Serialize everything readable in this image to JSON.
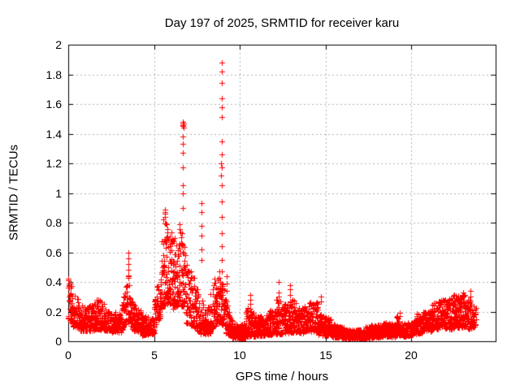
{
  "chart_data": {
    "type": "scatter",
    "title": "Day 197 of 2025, SRMTID for receiver karu",
    "xlabel": "GPS time / hours",
    "ylabel": "SRMTID / TECUs",
    "xlim": [
      0,
      24.9
    ],
    "ylim": [
      0,
      2
    ],
    "xticks": [
      0,
      5,
      10,
      15,
      20
    ],
    "yticks": [
      0,
      0.2,
      0.4,
      0.6,
      0.8,
      1,
      1.2,
      1.4,
      1.6,
      1.8,
      2
    ],
    "grid": true,
    "legend": "none",
    "marker": "plus",
    "marker_size_px": 7,
    "marker_color": "#ff0000",
    "grid_color": "#b4b4b4",
    "axis_color": "#000000",
    "background_color": "#ffffff",
    "seed": 197,
    "sample_step_hours": 0.02,
    "band_envelope": {
      "columns": [
        "t_start_h",
        "t_end_h",
        "lo_start",
        "hi_start",
        "lo_end",
        "hi_end",
        "points_per_step"
      ],
      "segments": [
        [
          0.0,
          0.25,
          0.14,
          0.43,
          0.12,
          0.36,
          3.2
        ],
        [
          0.25,
          0.7,
          0.1,
          0.33,
          0.09,
          0.27,
          2.8
        ],
        [
          0.7,
          1.2,
          0.07,
          0.25,
          0.07,
          0.22,
          2.8
        ],
        [
          1.2,
          1.8,
          0.07,
          0.24,
          0.08,
          0.3,
          2.8
        ],
        [
          1.8,
          2.4,
          0.08,
          0.28,
          0.07,
          0.22,
          2.8
        ],
        [
          2.4,
          3.1,
          0.06,
          0.2,
          0.06,
          0.19,
          2.8
        ],
        [
          3.1,
          3.42,
          0.07,
          0.24,
          0.12,
          0.4,
          2.8
        ],
        [
          3.42,
          3.6,
          0.14,
          0.52,
          0.12,
          0.35,
          3.0
        ],
        [
          3.6,
          4.3,
          0.08,
          0.28,
          0.06,
          0.2,
          2.8
        ],
        [
          4.3,
          5.0,
          0.04,
          0.18,
          0.05,
          0.15,
          2.8
        ],
        [
          5.0,
          5.45,
          0.08,
          0.3,
          0.18,
          0.5,
          2.8
        ],
        [
          5.45,
          5.75,
          0.22,
          0.89,
          0.25,
          0.8,
          3.4
        ],
        [
          5.75,
          6.1,
          0.25,
          0.78,
          0.25,
          0.72,
          3.2
        ],
        [
          6.1,
          6.5,
          0.22,
          0.74,
          0.25,
          0.68,
          3.0
        ],
        [
          6.5,
          6.85,
          0.25,
          0.8,
          0.2,
          0.6,
          2.8
        ],
        [
          6.85,
          7.35,
          0.12,
          0.55,
          0.1,
          0.45,
          2.6
        ],
        [
          7.35,
          7.7,
          0.08,
          0.42,
          0.06,
          0.3,
          2.6
        ],
        [
          7.7,
          8.3,
          0.05,
          0.28,
          0.05,
          0.25,
          2.9
        ],
        [
          8.3,
          8.8,
          0.08,
          0.38,
          0.12,
          0.48,
          2.8
        ],
        [
          8.8,
          9.15,
          0.12,
          0.45,
          0.1,
          0.4,
          3.0
        ],
        [
          9.15,
          9.55,
          0.06,
          0.3,
          0.03,
          0.15,
          2.8
        ],
        [
          9.55,
          10.35,
          0.02,
          0.12,
          0.02,
          0.12,
          3.2
        ],
        [
          10.35,
          10.8,
          0.03,
          0.24,
          0.04,
          0.2,
          2.8
        ],
        [
          10.8,
          11.6,
          0.03,
          0.16,
          0.04,
          0.18,
          3.0
        ],
        [
          11.6,
          12.1,
          0.04,
          0.2,
          0.05,
          0.24,
          2.8
        ],
        [
          12.1,
          12.45,
          0.05,
          0.3,
          0.05,
          0.26,
          2.8
        ],
        [
          12.45,
          12.95,
          0.05,
          0.24,
          0.06,
          0.28,
          2.8
        ],
        [
          12.95,
          13.25,
          0.06,
          0.33,
          0.06,
          0.28,
          2.8
        ],
        [
          13.25,
          13.9,
          0.05,
          0.23,
          0.06,
          0.24,
          2.8
        ],
        [
          13.9,
          14.55,
          0.07,
          0.29,
          0.06,
          0.26,
          2.8
        ],
        [
          14.55,
          15.3,
          0.04,
          0.19,
          0.04,
          0.15,
          2.8
        ],
        [
          15.3,
          16.2,
          0.03,
          0.12,
          0.02,
          0.09,
          3.0
        ],
        [
          16.2,
          17.3,
          0.02,
          0.08,
          0.02,
          0.08,
          3.4
        ],
        [
          17.3,
          18.3,
          0.02,
          0.1,
          0.03,
          0.12,
          3.4
        ],
        [
          18.3,
          19.1,
          0.03,
          0.13,
          0.03,
          0.12,
          3.0
        ],
        [
          19.1,
          19.5,
          0.04,
          0.19,
          0.04,
          0.14,
          2.8
        ],
        [
          19.5,
          20.3,
          0.03,
          0.12,
          0.05,
          0.14,
          3.0
        ],
        [
          20.3,
          21.2,
          0.05,
          0.19,
          0.07,
          0.22,
          2.8
        ],
        [
          21.2,
          22.2,
          0.08,
          0.26,
          0.09,
          0.3,
          2.9
        ],
        [
          22.2,
          23.25,
          0.08,
          0.31,
          0.1,
          0.32,
          3.2
        ],
        [
          23.25,
          23.75,
          0.08,
          0.3,
          0.1,
          0.24,
          2.4
        ]
      ]
    },
    "spike_columns": [
      {
        "x": 3.5,
        "values": [
          0.6,
          0.56,
          0.52,
          0.48,
          0.44
        ]
      },
      {
        "x": 5.62,
        "values": [
          0.89,
          0.87,
          0.86,
          0.84
        ]
      },
      {
        "x": 6.68,
        "values": [
          1.48,
          1.47,
          1.46,
          1.45,
          1.38,
          1.33,
          1.27,
          1.17,
          1.05,
          1.0,
          0.9
        ]
      },
      {
        "x": 6.74,
        "values": [
          1.47,
          1.44
        ]
      },
      {
        "x": 7.75,
        "values": [
          0.93,
          0.87,
          0.78,
          0.71,
          0.62,
          0.55
        ]
      },
      {
        "x": 8.88,
        "values": [
          1.2,
          1.12
        ]
      },
      {
        "x": 8.95,
        "values": [
          1.88,
          1.82,
          1.74,
          1.64,
          1.58,
          1.51,
          1.35,
          1.26,
          1.17,
          1.05,
          0.94,
          0.84,
          0.73,
          0.64,
          0.55,
          0.47,
          0.39
        ]
      },
      {
        "x": 9.25,
        "values": [
          0.44,
          0.39,
          0.34
        ]
      },
      {
        "x": 10.6,
        "values": [
          0.31,
          0.28,
          0.25,
          0.22
        ]
      },
      {
        "x": 12.25,
        "values": [
          0.4,
          0.33,
          0.3,
          0.26
        ]
      },
      {
        "x": 12.9,
        "values": [
          0.38,
          0.35,
          0.31,
          0.27,
          0.24
        ]
      },
      {
        "x": 14.7,
        "values": [
          0.3,
          0.27
        ]
      },
      {
        "x": 19.3,
        "values": [
          0.19,
          0.17
        ]
      },
      {
        "x": 22.5,
        "values": [
          0.31,
          0.29
        ]
      },
      {
        "x": 23.0,
        "values": [
          0.33,
          0.3
        ]
      },
      {
        "x": 23.42,
        "values": [
          0.34,
          0.3
        ]
      }
    ]
  }
}
